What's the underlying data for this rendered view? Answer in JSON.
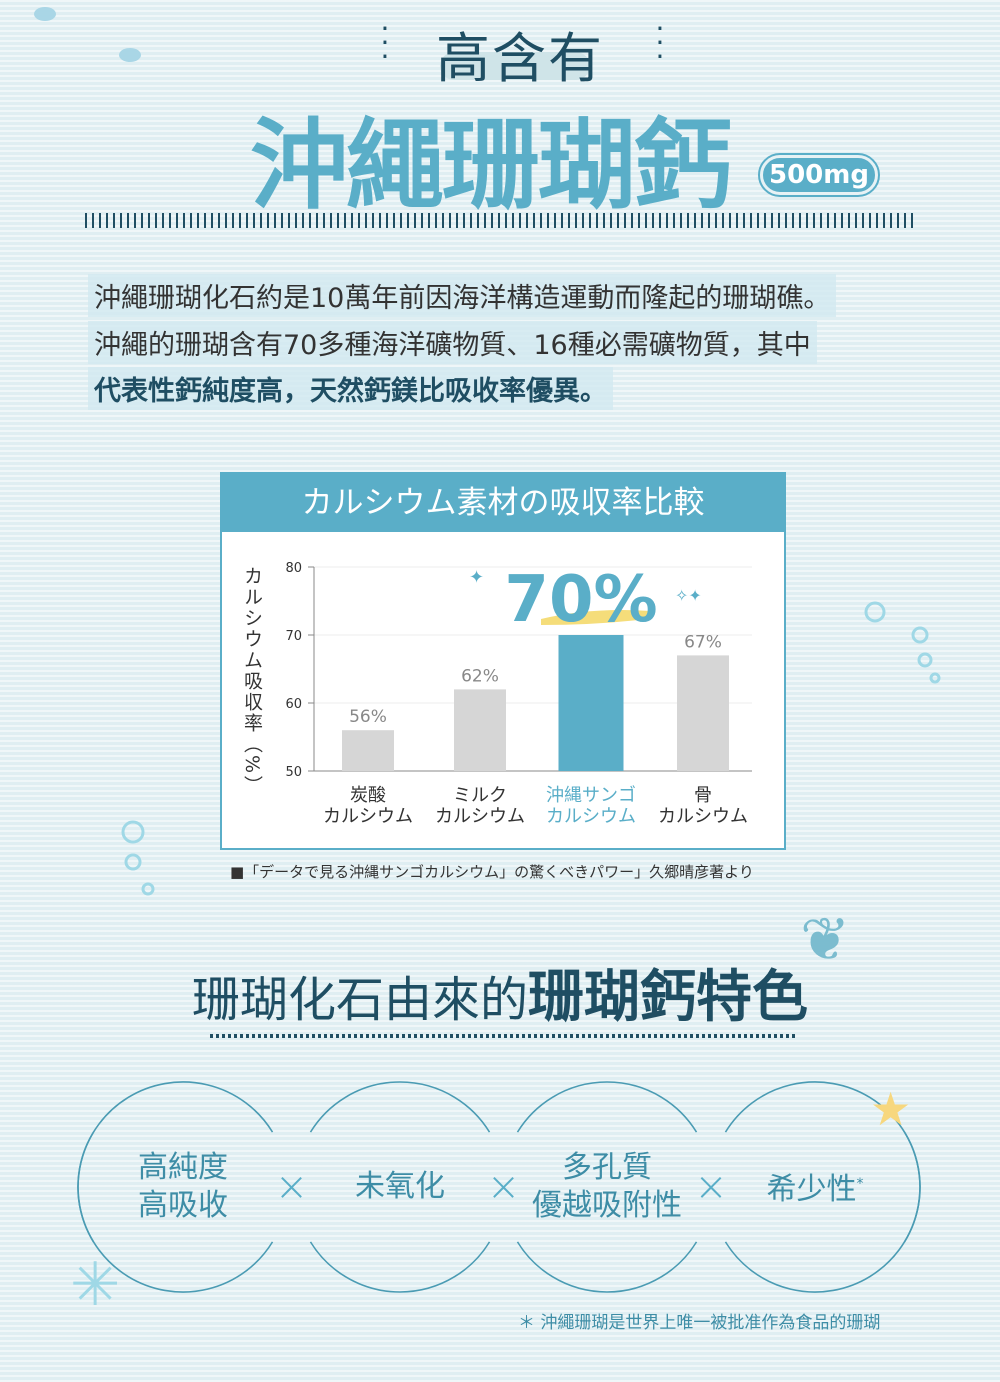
{
  "header": {
    "subtitle": "高含有",
    "title": "沖繩珊瑚鈣",
    "badge": "500mg"
  },
  "intro": {
    "lines": [
      "沖繩珊瑚化石約是10萬年前因海洋構造運動而隆起的珊瑚礁。",
      "沖繩的珊瑚含有70多種海洋礦物質、16種必需礦物質，其中",
      "代表性鈣純度高，天然鈣鎂比吸收率優異。"
    ]
  },
  "chart_data": {
    "type": "bar",
    "title": "カルシウム素材の吸収率比較",
    "ylabel": "カルシウム吸収率（%）",
    "ylim": [
      50,
      80
    ],
    "yticks": [
      "50",
      "60",
      "70",
      "80"
    ],
    "categories": [
      [
        "炭酸",
        "カルシウム"
      ],
      [
        "ミルク",
        "カルシウム"
      ],
      [
        "沖縄サンゴ",
        "カルシウム"
      ],
      [
        "骨",
        "カルシウム"
      ]
    ],
    "values": [
      56,
      62,
      70,
      67
    ],
    "data_labels": [
      "56%",
      "62%",
      "70%",
      "67%"
    ],
    "highlight_index": 2,
    "colors": {
      "default": "#d6d6d6",
      "highlight": "#5aaec8",
      "accent_underline": "#f5dd7a"
    },
    "grid": true
  },
  "source": "■「データで見る沖縄サンゴカルシウム」の驚くべきパワー」久郷晴彦著より",
  "features": {
    "title_normal": "珊瑚化石由來的",
    "title_bold": "珊瑚鈣特色",
    "items": [
      {
        "lines": [
          "高純度",
          "高吸收"
        ]
      },
      {
        "lines": [
          "未氧化"
        ]
      },
      {
        "lines": [
          "多孔質",
          "優越吸附性"
        ]
      },
      {
        "lines": [
          "希少性"
        ],
        "mark": "*"
      }
    ],
    "separator": "×",
    "footnote": "＊ 沖繩珊瑚是世界上唯一被批准作為食品的珊瑚"
  }
}
